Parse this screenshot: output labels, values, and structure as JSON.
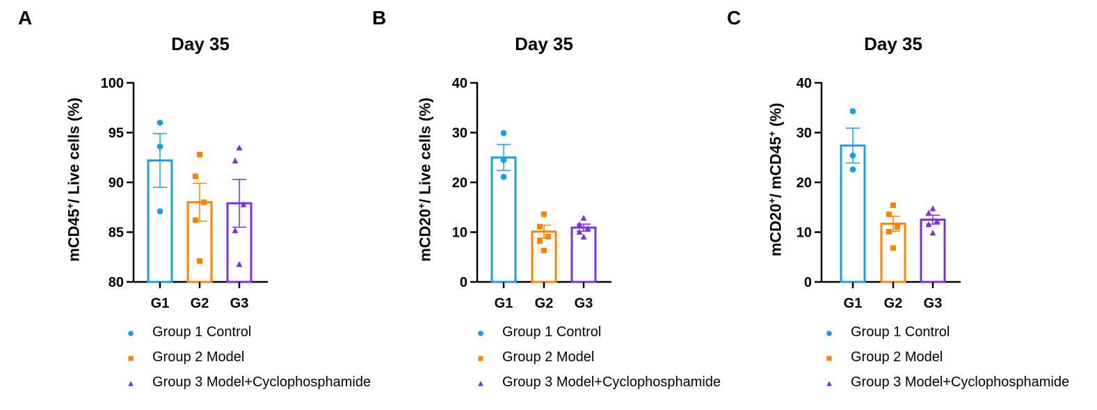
{
  "colors": {
    "g1": "#1aa0e0",
    "g2": "#ff8200",
    "g3": "#7b2fe0"
  },
  "legend": [
    {
      "label": "Group 1 Control",
      "marker": "circle",
      "color": "#1aa0e0"
    },
    {
      "label": "Group 2 Model",
      "marker": "square",
      "color": "#ff8200"
    },
    {
      "label": "Group 3 Model+Cyclophosphamide",
      "marker": "triangle",
      "color": "#7b2fe0"
    }
  ],
  "panels": [
    {
      "letter": "A",
      "title": "Day 35",
      "ylabel_main": "mCD45",
      "ylabel_sup": "+",
      "ylabel_rest": "/ Live cells (%)"
    },
    {
      "letter": "B",
      "title": "Day 35",
      "ylabel_main": "mCD20",
      "ylabel_sup": "+",
      "ylabel_rest": "/ Live cells (%)"
    },
    {
      "letter": "C",
      "title": "Day 35",
      "ylabel_main": "mCD20",
      "ylabel_sup": "+",
      "ylabel_rest": "/ mCD45",
      "ylabel_sup2": "+",
      "ylabel_rest2": " (%)"
    }
  ],
  "chart_data": [
    {
      "type": "bar",
      "title": "Day 35",
      "ylabel": "mCD45+/ Live cells (%)",
      "categories": [
        "G1",
        "G2",
        "G3"
      ],
      "ylim": [
        80,
        100
      ],
      "yticks": [
        80,
        85,
        90,
        95,
        100
      ],
      "means": [
        92.2,
        88.0,
        87.9
      ],
      "sem": [
        2.7,
        1.9,
        2.4
      ],
      "points": [
        [
          96.0,
          93.6,
          87.1
        ],
        [
          92.8,
          90.6,
          88.0,
          86.2,
          82.1
        ],
        [
          93.5,
          92.2,
          87.8,
          85.2,
          81.8
        ]
      ]
    },
    {
      "type": "bar",
      "title": "Day 35",
      "ylabel": "mCD20+/ Live cells (%)",
      "categories": [
        "G1",
        "G2",
        "G3"
      ],
      "ylim": [
        0,
        40
      ],
      "yticks": [
        0,
        10,
        20,
        30,
        40
      ],
      "means": [
        25.0,
        10.1,
        10.9
      ],
      "sem": [
        2.6,
        1.3,
        0.7
      ],
      "points": [
        [
          29.9,
          24.5,
          21.1
        ],
        [
          13.6,
          11.1,
          9.1,
          8.2,
          6.3
        ],
        [
          12.9,
          11.6,
          10.8,
          10.1,
          9.1
        ]
      ]
    },
    {
      "type": "bar",
      "title": "Day 35",
      "ylabel": "mCD20+/ mCD45+ (%)",
      "categories": [
        "G1",
        "G2",
        "G3"
      ],
      "ylim": [
        0,
        40
      ],
      "yticks": [
        0,
        10,
        20,
        30,
        40
      ],
      "means": [
        27.4,
        11.7,
        12.5
      ],
      "sem": [
        3.5,
        1.5,
        0.9
      ],
      "points": [
        [
          34.3,
          25.4,
          22.6
        ],
        [
          15.4,
          13.6,
          11.0,
          10.1,
          6.8
        ],
        [
          14.8,
          13.9,
          12.3,
          11.6,
          9.9
        ]
      ]
    }
  ]
}
